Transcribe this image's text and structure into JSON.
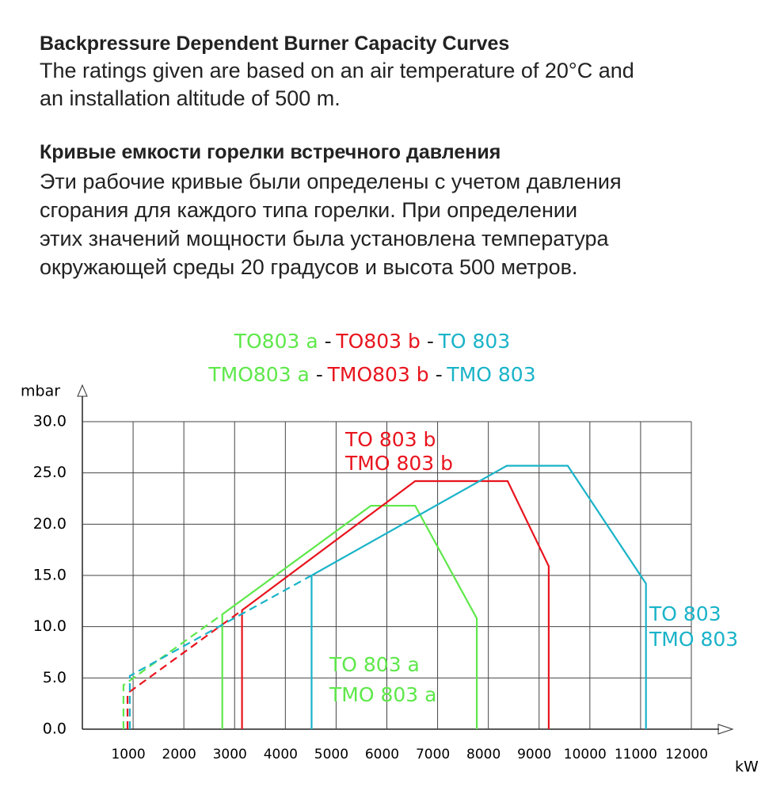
{
  "header": {
    "title": "Backpressure Dependent Burner Capacity Curves",
    "lines": [
      "The ratings given are based on an air temperature of 20°C and",
      "an installation altitude of 500 m."
    ]
  },
  "header_ru": {
    "title": "Кривые емкости горелки встречного давления",
    "lines": [
      "Эти рабочие кривые были определены с учетом давления",
      "сгорания для каждого типа горелки. При определении",
      "этих значений мощности была установлена температура",
      "окружающей среды 20 градусов и высота 500 метров."
    ]
  },
  "chart_data": {
    "type": "line",
    "separator": "-",
    "y_label": "mbar",
    "x_label": "kW",
    "xlim": [
      0,
      12000
    ],
    "xticks": [
      1000,
      2000,
      3000,
      4000,
      5000,
      6000,
      7000,
      8000,
      9000,
      10000,
      11000,
      12000
    ],
    "ylim": [
      0,
      30
    ],
    "yticks": [
      {
        "value": 0,
        "label": "0.0"
      },
      {
        "value": 5,
        "label": "5.0"
      },
      {
        "value": 10,
        "label": "10.0"
      },
      {
        "value": 15,
        "label": "15.0"
      },
      {
        "value": 20,
        "label": "20.0"
      },
      {
        "value": 25,
        "label": "25.0"
      },
      {
        "value": 30,
        "label": "30.0"
      }
    ],
    "grid": true,
    "series": [
      {
        "name": "TO803 a",
        "name2": "TMO803 a",
        "labels": [
          "TO 803 a",
          "TMO 803 a"
        ],
        "color": "#5ee84a",
        "segments": [
          {
            "style": "dashed",
            "x": [
              810,
              810,
              2757
            ],
            "values": [
              0,
              4.3,
              11.2
            ]
          },
          {
            "style": "solid",
            "x": [
              2757,
              2757,
              5685,
              6558,
              7773,
              7773
            ],
            "values": [
              0,
              11.2,
              21.8,
              21.8,
              10.8,
              0
            ]
          }
        ]
      },
      {
        "name": "TO803 b",
        "name2": "TMO803 b",
        "labels": [
          "TO 803 b",
          "TMO 803 b"
        ],
        "color": "#e8141e",
        "segments": [
          {
            "style": "dashed",
            "x": [
              890,
              890,
              3146
            ],
            "values": [
              0,
              3.5,
              11.6
            ]
          },
          {
            "style": "solid",
            "x": [
              3146,
              3146,
              6558,
              8380,
              9190,
              9190
            ],
            "values": [
              0,
              11.6,
              24.2,
              24.2,
              15.9,
              0
            ]
          }
        ]
      },
      {
        "name": "TO 803",
        "name2": "TMO 803",
        "labels": [
          "TO 803",
          "TMO 803"
        ],
        "color": "#1ab3c8",
        "segments": [
          {
            "style": "dashed",
            "x": [
              935,
              935,
              4517
            ],
            "values": [
              0,
              5.2,
              15.0
            ]
          },
          {
            "style": "solid",
            "x": [
              4517,
              4517,
              8364,
              9564,
              11106,
              11106
            ],
            "values": [
              0,
              15.0,
              25.7,
              25.7,
              14.2,
              0
            ]
          }
        ]
      }
    ]
  }
}
